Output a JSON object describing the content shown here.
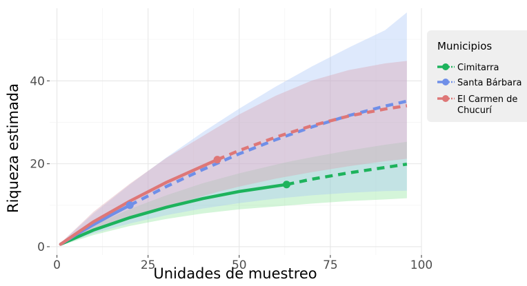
{
  "chart_data": {
    "type": "line",
    "xlabel": "Unidades de muestreo",
    "ylabel": "Riqueza estimada",
    "xlim": [
      -2,
      100
    ],
    "ylim": [
      -2,
      57.5
    ],
    "xticks": [
      0,
      25,
      50,
      75,
      100
    ],
    "xtick_labels": [
      "0",
      "25",
      "50",
      "75",
      "100"
    ],
    "yticks": [
      0,
      20,
      40
    ],
    "ytick_labels": [
      "0",
      "20",
      "40"
    ],
    "grid": true,
    "legend_title": "Municipios",
    "legend_position": "right",
    "series": [
      {
        "name": "Cimitarra",
        "color": "#1db35c",
        "band_color": "#8ee69c",
        "observed_point": {
          "x": 63,
          "y": 15
        },
        "interpolated": [
          {
            "x": 1,
            "y": 0.6
          },
          {
            "x": 10,
            "y": 4.0
          },
          {
            "x": 20,
            "y": 7.0
          },
          {
            "x": 30,
            "y": 9.5
          },
          {
            "x": 40,
            "y": 11.6
          },
          {
            "x": 50,
            "y": 13.3
          },
          {
            "x": 63,
            "y": 15.0
          }
        ],
        "extrapolated": [
          {
            "x": 63,
            "y": 15.0
          },
          {
            "x": 70,
            "y": 16.3
          },
          {
            "x": 80,
            "y": 17.8
          },
          {
            "x": 90,
            "y": 19.1
          },
          {
            "x": 96,
            "y": 19.9
          }
        ],
        "lower": [
          {
            "x": 1,
            "y": 0.3
          },
          {
            "x": 10,
            "y": 2.8
          },
          {
            "x": 20,
            "y": 5.0
          },
          {
            "x": 30,
            "y": 6.7
          },
          {
            "x": 40,
            "y": 8.0
          },
          {
            "x": 50,
            "y": 9.0
          },
          {
            "x": 63,
            "y": 9.9
          },
          {
            "x": 70,
            "y": 10.4
          },
          {
            "x": 80,
            "y": 11.0
          },
          {
            "x": 90,
            "y": 11.4
          },
          {
            "x": 96,
            "y": 11.7
          }
        ],
        "upper": [
          {
            "x": 1,
            "y": 0.9
          },
          {
            "x": 10,
            "y": 5.2
          },
          {
            "x": 20,
            "y": 9.1
          },
          {
            "x": 30,
            "y": 12.4
          },
          {
            "x": 40,
            "y": 15.3
          },
          {
            "x": 50,
            "y": 17.7
          },
          {
            "x": 63,
            "y": 20.4
          },
          {
            "x": 70,
            "y": 21.6
          },
          {
            "x": 80,
            "y": 23.2
          },
          {
            "x": 90,
            "y": 24.6
          },
          {
            "x": 96,
            "y": 25.3
          }
        ]
      },
      {
        "name": "Santa Bárbara",
        "color": "#6f8fe8",
        "band_color": "#a8c4f7",
        "observed_point": {
          "x": 20,
          "y": 10
        },
        "interpolated": [
          {
            "x": 1,
            "y": 0.6
          },
          {
            "x": 5,
            "y": 2.8
          },
          {
            "x": 10,
            "y": 5.3
          },
          {
            "x": 15,
            "y": 7.7
          },
          {
            "x": 20,
            "y": 10.0
          }
        ],
        "extrapolated": [
          {
            "x": 20,
            "y": 10.0
          },
          {
            "x": 30,
            "y": 14.5
          },
          {
            "x": 40,
            "y": 18.6
          },
          {
            "x": 50,
            "y": 22.4
          },
          {
            "x": 60,
            "y": 25.8
          },
          {
            "x": 70,
            "y": 28.9
          },
          {
            "x": 80,
            "y": 31.6
          },
          {
            "x": 90,
            "y": 33.9
          },
          {
            "x": 96,
            "y": 35.1
          }
        ],
        "lower": [
          {
            "x": 1,
            "y": 0.3
          },
          {
            "x": 10,
            "y": 3.2
          },
          {
            "x": 20,
            "y": 5.6
          },
          {
            "x": 30,
            "y": 7.6
          },
          {
            "x": 40,
            "y": 9.2
          },
          {
            "x": 50,
            "y": 10.5
          },
          {
            "x": 60,
            "y": 11.6
          },
          {
            "x": 70,
            "y": 12.4
          },
          {
            "x": 80,
            "y": 13.0
          },
          {
            "x": 90,
            "y": 13.4
          },
          {
            "x": 96,
            "y": 13.5
          }
        ],
        "upper": [
          {
            "x": 1,
            "y": 0.9
          },
          {
            "x": 10,
            "y": 8.0
          },
          {
            "x": 20,
            "y": 15.0
          },
          {
            "x": 30,
            "y": 21.5
          },
          {
            "x": 40,
            "y": 27.6
          },
          {
            "x": 50,
            "y": 33.3
          },
          {
            "x": 60,
            "y": 38.6
          },
          {
            "x": 70,
            "y": 43.5
          },
          {
            "x": 80,
            "y": 48.0
          },
          {
            "x": 90,
            "y": 52.2
          },
          {
            "x": 96,
            "y": 56.5
          }
        ]
      },
      {
        "name": "El Carmen de Chucurí",
        "color": "#de7777",
        "band_color": "#d9a1ad",
        "observed_point": {
          "x": 44,
          "y": 21
        },
        "interpolated": [
          {
            "x": 1,
            "y": 0.6
          },
          {
            "x": 10,
            "y": 6.0
          },
          {
            "x": 20,
            "y": 11.0
          },
          {
            "x": 30,
            "y": 15.5
          },
          {
            "x": 44,
            "y": 21.0
          }
        ],
        "extrapolated": [
          {
            "x": 44,
            "y": 21.0
          },
          {
            "x": 50,
            "y": 23.2
          },
          {
            "x": 60,
            "y": 26.4
          },
          {
            "x": 70,
            "y": 29.2
          },
          {
            "x": 80,
            "y": 31.5
          },
          {
            "x": 90,
            "y": 33.2
          },
          {
            "x": 96,
            "y": 34.0
          }
        ],
        "lower": [
          {
            "x": 1,
            "y": 0.3
          },
          {
            "x": 10,
            "y": 3.6
          },
          {
            "x": 20,
            "y": 6.8
          },
          {
            "x": 30,
            "y": 9.6
          },
          {
            "x": 44,
            "y": 13.2
          },
          {
            "x": 50,
            "y": 14.5
          },
          {
            "x": 60,
            "y": 16.4
          },
          {
            "x": 70,
            "y": 18.0
          },
          {
            "x": 80,
            "y": 19.4
          },
          {
            "x": 90,
            "y": 20.6
          },
          {
            "x": 96,
            "y": 21.2
          }
        ],
        "upper": [
          {
            "x": 1,
            "y": 0.9
          },
          {
            "x": 10,
            "y": 8.4
          },
          {
            "x": 20,
            "y": 15.2
          },
          {
            "x": 30,
            "y": 21.4
          },
          {
            "x": 44,
            "y": 28.8
          },
          {
            "x": 50,
            "y": 31.9
          },
          {
            "x": 60,
            "y": 36.4
          },
          {
            "x": 70,
            "y": 40.1
          },
          {
            "x": 80,
            "y": 42.6
          },
          {
            "x": 90,
            "y": 44.2
          },
          {
            "x": 96,
            "y": 44.8
          }
        ]
      }
    ]
  }
}
